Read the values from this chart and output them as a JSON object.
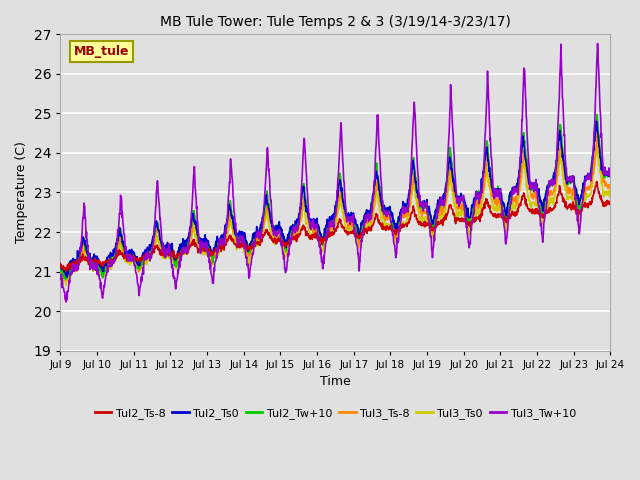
{
  "title": "MB Tule Tower: Tule Temps 2 & 3 (3/19/14-3/23/17)",
  "xlabel": "Time",
  "ylabel": "Temperature (C)",
  "ylim": [
    19.0,
    27.0
  ],
  "yticks": [
    19.0,
    20.0,
    21.0,
    22.0,
    23.0,
    24.0,
    25.0,
    26.0,
    27.0
  ],
  "xtick_labels": [
    "Jul 9",
    "Jul 10",
    "Jul 11",
    "Jul 12",
    "Jul 13",
    "Jul 14",
    "Jul 15",
    "Jul 16",
    "Jul 17",
    "Jul 18",
    "Jul 19",
    "Jul 20",
    "Jul 21",
    "Jul 22",
    "Jul 23",
    "Jul 24"
  ],
  "xlim": [
    0,
    15
  ],
  "figsize": [
    6.4,
    4.8
  ],
  "dpi": 100,
  "background_color": "#e0e0e0",
  "series": {
    "Tul2_Ts-8": {
      "color": "#cc0000",
      "lw": 1.2
    },
    "Tul2_Ts0": {
      "color": "#0000cc",
      "lw": 1.2
    },
    "Tul2_Tw+10": {
      "color": "#00cc00",
      "lw": 1.2
    },
    "Tul3_Ts-8": {
      "color": "#ff8800",
      "lw": 1.2
    },
    "Tul3_Ts0": {
      "color": "#cccc00",
      "lw": 1.2
    },
    "Tul3_Tw+10": {
      "color": "#9900cc",
      "lw": 1.2
    }
  },
  "annotation_text": "MB_tule",
  "annotation_color": "#990000",
  "annotation_bg": "#ffff99",
  "annotation_border": "#999900"
}
